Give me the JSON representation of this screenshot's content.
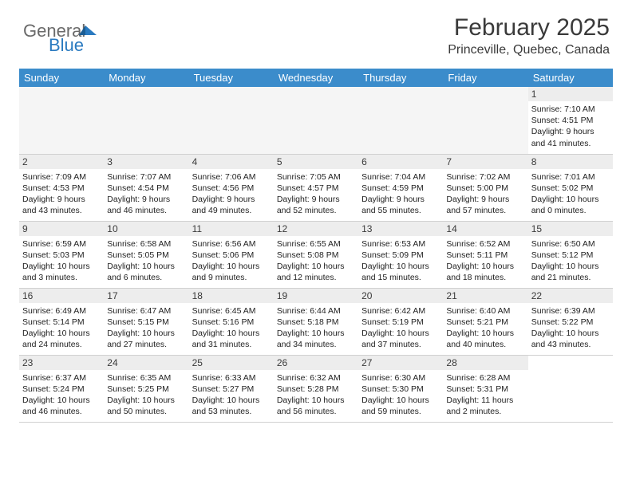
{
  "logo": {
    "text1": "General",
    "text2": "Blue"
  },
  "title": "February 2025",
  "location": "Princeville, Quebec, Canada",
  "header_bg": "#3b8ccb",
  "daynum_bg": "#ededed",
  "weekdays": [
    "Sunday",
    "Monday",
    "Tuesday",
    "Wednesday",
    "Thursday",
    "Friday",
    "Saturday"
  ],
  "weeks": [
    [
      null,
      null,
      null,
      null,
      null,
      null,
      {
        "n": "1",
        "sr": "7:10 AM",
        "ss": "4:51 PM",
        "dl": "9 hours and 41 minutes."
      }
    ],
    [
      {
        "n": "2",
        "sr": "7:09 AM",
        "ss": "4:53 PM",
        "dl": "9 hours and 43 minutes."
      },
      {
        "n": "3",
        "sr": "7:07 AM",
        "ss": "4:54 PM",
        "dl": "9 hours and 46 minutes."
      },
      {
        "n": "4",
        "sr": "7:06 AM",
        "ss": "4:56 PM",
        "dl": "9 hours and 49 minutes."
      },
      {
        "n": "5",
        "sr": "7:05 AM",
        "ss": "4:57 PM",
        "dl": "9 hours and 52 minutes."
      },
      {
        "n": "6",
        "sr": "7:04 AM",
        "ss": "4:59 PM",
        "dl": "9 hours and 55 minutes."
      },
      {
        "n": "7",
        "sr": "7:02 AM",
        "ss": "5:00 PM",
        "dl": "9 hours and 57 minutes."
      },
      {
        "n": "8",
        "sr": "7:01 AM",
        "ss": "5:02 PM",
        "dl": "10 hours and 0 minutes."
      }
    ],
    [
      {
        "n": "9",
        "sr": "6:59 AM",
        "ss": "5:03 PM",
        "dl": "10 hours and 3 minutes."
      },
      {
        "n": "10",
        "sr": "6:58 AM",
        "ss": "5:05 PM",
        "dl": "10 hours and 6 minutes."
      },
      {
        "n": "11",
        "sr": "6:56 AM",
        "ss": "5:06 PM",
        "dl": "10 hours and 9 minutes."
      },
      {
        "n": "12",
        "sr": "6:55 AM",
        "ss": "5:08 PM",
        "dl": "10 hours and 12 minutes."
      },
      {
        "n": "13",
        "sr": "6:53 AM",
        "ss": "5:09 PM",
        "dl": "10 hours and 15 minutes."
      },
      {
        "n": "14",
        "sr": "6:52 AM",
        "ss": "5:11 PM",
        "dl": "10 hours and 18 minutes."
      },
      {
        "n": "15",
        "sr": "6:50 AM",
        "ss": "5:12 PM",
        "dl": "10 hours and 21 minutes."
      }
    ],
    [
      {
        "n": "16",
        "sr": "6:49 AM",
        "ss": "5:14 PM",
        "dl": "10 hours and 24 minutes."
      },
      {
        "n": "17",
        "sr": "6:47 AM",
        "ss": "5:15 PM",
        "dl": "10 hours and 27 minutes."
      },
      {
        "n": "18",
        "sr": "6:45 AM",
        "ss": "5:16 PM",
        "dl": "10 hours and 31 minutes."
      },
      {
        "n": "19",
        "sr": "6:44 AM",
        "ss": "5:18 PM",
        "dl": "10 hours and 34 minutes."
      },
      {
        "n": "20",
        "sr": "6:42 AM",
        "ss": "5:19 PM",
        "dl": "10 hours and 37 minutes."
      },
      {
        "n": "21",
        "sr": "6:40 AM",
        "ss": "5:21 PM",
        "dl": "10 hours and 40 minutes."
      },
      {
        "n": "22",
        "sr": "6:39 AM",
        "ss": "5:22 PM",
        "dl": "10 hours and 43 minutes."
      }
    ],
    [
      {
        "n": "23",
        "sr": "6:37 AM",
        "ss": "5:24 PM",
        "dl": "10 hours and 46 minutes."
      },
      {
        "n": "24",
        "sr": "6:35 AM",
        "ss": "5:25 PM",
        "dl": "10 hours and 50 minutes."
      },
      {
        "n": "25",
        "sr": "6:33 AM",
        "ss": "5:27 PM",
        "dl": "10 hours and 53 minutes."
      },
      {
        "n": "26",
        "sr": "6:32 AM",
        "ss": "5:28 PM",
        "dl": "10 hours and 56 minutes."
      },
      {
        "n": "27",
        "sr": "6:30 AM",
        "ss": "5:30 PM",
        "dl": "10 hours and 59 minutes."
      },
      {
        "n": "28",
        "sr": "6:28 AM",
        "ss": "5:31 PM",
        "dl": "11 hours and 2 minutes."
      },
      null
    ]
  ],
  "labels": {
    "sunrise": "Sunrise:",
    "sunset": "Sunset:",
    "daylight": "Daylight:"
  }
}
